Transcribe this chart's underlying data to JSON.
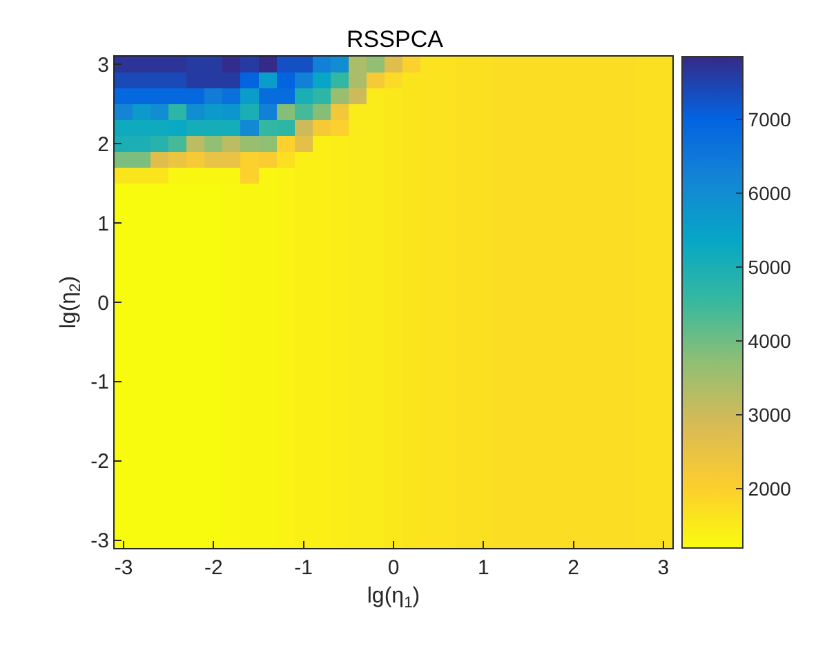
{
  "chart_data": {
    "type": "heatmap",
    "title": "RSSPCA",
    "xlabel": "lg(η$_{1}$)",
    "ylabel": "lg(η$_{2}$)",
    "x": [
      -3,
      -2.8,
      -2.6,
      -2.4,
      -2.2,
      -2,
      -1.8,
      -1.6,
      -1.4,
      -1.2,
      -1,
      -0.8,
      -0.6,
      -0.4,
      -0.2,
      0,
      0.2,
      0.4,
      0.6,
      0.8,
      1,
      1.2,
      1.4,
      1.6,
      1.8,
      2,
      2.2,
      2.4,
      2.6,
      2.8,
      3
    ],
    "y": [
      3,
      2.8,
      2.6,
      2.4,
      2.2,
      2,
      1.8,
      1.6,
      1.4,
      1.2,
      1,
      0.8,
      0.6,
      0.4,
      0.2,
      0,
      -0.2,
      -0.4,
      -0.6,
      -0.8,
      -1,
      -1.2,
      -1.4,
      -1.6,
      -1.8,
      -2,
      -2.2,
      -2.4,
      -2.6,
      -2.8,
      -3
    ],
    "xlim": [
      -3.1,
      3.1
    ],
    "ylim": [
      -3.1,
      3.1
    ],
    "xticks": [
      -3,
      -2,
      -1,
      0,
      1,
      2,
      3
    ],
    "yticks": [
      -3,
      -2,
      -1,
      0,
      1,
      2,
      3
    ],
    "clim": [
      1200,
      7850
    ],
    "cticks": [
      2000,
      3000,
      4000,
      5000,
      6000,
      7000
    ],
    "cells": [
      [
        7700,
        7700,
        7700,
        7700,
        7600,
        7600,
        7800,
        7600,
        7850,
        7300,
        7300,
        6300,
        6000,
        3400,
        3700,
        2700,
        2000,
        1650,
        1650,
        1700,
        1700,
        1750,
        1750,
        1750,
        1750,
        1750,
        1750,
        1750,
        1750,
        1700,
        1700
      ],
      [
        7400,
        7400,
        7400,
        7400,
        7600,
        7600,
        7600,
        7000,
        5600,
        7000,
        6300,
        5400,
        4600,
        3400,
        2200,
        1800,
        1600,
        1650,
        1650,
        1700,
        1700,
        1750,
        1750,
        1750,
        1750,
        1750,
        1750,
        1750,
        1750,
        1700,
        1700
      ],
      [
        6900,
        6900,
        6900,
        6900,
        6900,
        6400,
        6700,
        5600,
        6800,
        6800,
        5000,
        4700,
        3600,
        3000,
        1500,
        1550,
        1600,
        1650,
        1650,
        1700,
        1700,
        1750,
        1750,
        1750,
        1750,
        1750,
        1750,
        1750,
        1750,
        1700,
        1700
      ],
      [
        6200,
        5700,
        6000,
        4700,
        6000,
        5700,
        5800,
        5000,
        6300,
        3800,
        4400,
        3800,
        2300,
        1500,
        1500,
        1550,
        1600,
        1650,
        1650,
        1700,
        1700,
        1750,
        1750,
        1750,
        1750,
        1750,
        1750,
        1750,
        1750,
        1700,
        1700
      ],
      [
        5200,
        5200,
        5200,
        5300,
        5100,
        5100,
        5100,
        6100,
        4600,
        4700,
        3000,
        2200,
        2000,
        1500,
        1500,
        1550,
        1600,
        1650,
        1650,
        1700,
        1700,
        1750,
        1750,
        1750,
        1750,
        1750,
        1750,
        1750,
        1750,
        1700,
        1700
      ],
      [
        5000,
        5000,
        4800,
        4400,
        3200,
        3700,
        3200,
        3600,
        3700,
        2000,
        2600,
        1400,
        1450,
        1500,
        1500,
        1550,
        1600,
        1650,
        1650,
        1700,
        1700,
        1750,
        1750,
        1750,
        1750,
        1750,
        1750,
        1750,
        1750,
        1700,
        1700
      ],
      [
        3900,
        3900,
        2700,
        2400,
        2200,
        2500,
        2500,
        2000,
        2100,
        1700,
        1400,
        1400,
        1450,
        1500,
        1500,
        1550,
        1600,
        1650,
        1650,
        1700,
        1700,
        1750,
        1750,
        1750,
        1750,
        1750,
        1750,
        1750,
        1750,
        1700,
        1700
      ],
      [
        1600,
        1600,
        1600,
        1300,
        1300,
        1300,
        1300,
        2000,
        1300,
        1350,
        1400,
        1400,
        1450,
        1500,
        1500,
        1550,
        1600,
        1650,
        1650,
        1700,
        1700,
        1750,
        1750,
        1750,
        1750,
        1750,
        1750,
        1750,
        1750,
        1700,
        1700
      ],
      [
        1200,
        1200,
        1200,
        1200,
        1200,
        1200,
        1250,
        1300,
        1300,
        1350,
        1400,
        1400,
        1450,
        1500,
        1500,
        1550,
        1600,
        1650,
        1650,
        1700,
        1700,
        1750,
        1750,
        1750,
        1750,
        1750,
        1750,
        1750,
        1750,
        1700,
        1700
      ],
      [
        1200,
        1200,
        1200,
        1200,
        1200,
        1200,
        1250,
        1300,
        1300,
        1350,
        1400,
        1400,
        1450,
        1500,
        1500,
        1550,
        1600,
        1650,
        1650,
        1700,
        1700,
        1750,
        1750,
        1750,
        1750,
        1750,
        1750,
        1750,
        1750,
        1700,
        1700
      ],
      [
        1200,
        1200,
        1200,
        1200,
        1200,
        1200,
        1250,
        1300,
        1300,
        1350,
        1400,
        1400,
        1450,
        1500,
        1500,
        1550,
        1600,
        1650,
        1650,
        1700,
        1700,
        1750,
        1750,
        1750,
        1750,
        1750,
        1750,
        1750,
        1750,
        1700,
        1700
      ],
      [
        1200,
        1200,
        1200,
        1200,
        1200,
        1200,
        1250,
        1300,
        1300,
        1350,
        1400,
        1400,
        1450,
        1500,
        1500,
        1550,
        1600,
        1650,
        1650,
        1700,
        1700,
        1750,
        1750,
        1750,
        1750,
        1750,
        1750,
        1750,
        1750,
        1700,
        1700
      ],
      [
        1200,
        1200,
        1200,
        1200,
        1200,
        1200,
        1250,
        1300,
        1300,
        1350,
        1400,
        1400,
        1450,
        1500,
        1500,
        1550,
        1600,
        1650,
        1650,
        1700,
        1700,
        1750,
        1750,
        1750,
        1750,
        1750,
        1750,
        1750,
        1750,
        1700,
        1700
      ],
      [
        1200,
        1200,
        1200,
        1200,
        1200,
        1200,
        1250,
        1300,
        1300,
        1350,
        1400,
        1400,
        1450,
        1500,
        1500,
        1550,
        1600,
        1650,
        1650,
        1700,
        1700,
        1750,
        1750,
        1750,
        1750,
        1750,
        1750,
        1750,
        1750,
        1700,
        1700
      ],
      [
        1200,
        1200,
        1200,
        1200,
        1200,
        1200,
        1250,
        1300,
        1300,
        1350,
        1400,
        1400,
        1450,
        1500,
        1500,
        1550,
        1600,
        1650,
        1650,
        1700,
        1700,
        1750,
        1750,
        1750,
        1750,
        1750,
        1750,
        1750,
        1750,
        1700,
        1700
      ],
      [
        1200,
        1200,
        1200,
        1200,
        1200,
        1200,
        1250,
        1300,
        1300,
        1350,
        1400,
        1400,
        1450,
        1500,
        1500,
        1550,
        1600,
        1650,
        1650,
        1700,
        1700,
        1750,
        1750,
        1750,
        1750,
        1750,
        1750,
        1750,
        1750,
        1700,
        1700
      ],
      [
        1200,
        1200,
        1200,
        1200,
        1200,
        1200,
        1250,
        1300,
        1300,
        1350,
        1400,
        1400,
        1450,
        1500,
        1500,
        1550,
        1600,
        1650,
        1650,
        1700,
        1700,
        1750,
        1750,
        1750,
        1750,
        1750,
        1750,
        1750,
        1750,
        1700,
        1700
      ],
      [
        1200,
        1200,
        1200,
        1200,
        1200,
        1200,
        1250,
        1300,
        1300,
        1350,
        1400,
        1400,
        1450,
        1500,
        1500,
        1550,
        1600,
        1650,
        1650,
        1700,
        1700,
        1750,
        1750,
        1750,
        1750,
        1750,
        1750,
        1750,
        1750,
        1700,
        1700
      ],
      [
        1200,
        1200,
        1200,
        1200,
        1200,
        1200,
        1250,
        1300,
        1300,
        1350,
        1400,
        1400,
        1450,
        1500,
        1500,
        1550,
        1600,
        1650,
        1650,
        1700,
        1700,
        1750,
        1750,
        1750,
        1750,
        1750,
        1750,
        1750,
        1750,
        1700,
        1700
      ],
      [
        1200,
        1200,
        1200,
        1200,
        1200,
        1200,
        1250,
        1300,
        1300,
        1350,
        1400,
        1400,
        1450,
        1500,
        1500,
        1550,
        1600,
        1650,
        1650,
        1700,
        1700,
        1750,
        1750,
        1750,
        1750,
        1750,
        1750,
        1750,
        1750,
        1700,
        1700
      ],
      [
        1200,
        1200,
        1200,
        1200,
        1200,
        1200,
        1250,
        1300,
        1300,
        1350,
        1400,
        1400,
        1450,
        1500,
        1500,
        1550,
        1600,
        1650,
        1650,
        1700,
        1700,
        1750,
        1750,
        1750,
        1750,
        1750,
        1750,
        1750,
        1750,
        1700,
        1700
      ],
      [
        1200,
        1200,
        1200,
        1200,
        1200,
        1200,
        1250,
        1300,
        1300,
        1350,
        1400,
        1400,
        1450,
        1500,
        1500,
        1550,
        1600,
        1650,
        1650,
        1700,
        1700,
        1750,
        1750,
        1750,
        1750,
        1750,
        1750,
        1750,
        1750,
        1700,
        1700
      ],
      [
        1200,
        1200,
        1200,
        1200,
        1200,
        1200,
        1250,
        1300,
        1300,
        1350,
        1400,
        1400,
        1450,
        1500,
        1500,
        1550,
        1600,
        1650,
        1650,
        1700,
        1700,
        1750,
        1750,
        1750,
        1750,
        1750,
        1750,
        1750,
        1750,
        1700,
        1700
      ],
      [
        1200,
        1200,
        1200,
        1200,
        1200,
        1200,
        1250,
        1300,
        1300,
        1350,
        1400,
        1400,
        1450,
        1500,
        1500,
        1550,
        1600,
        1650,
        1650,
        1700,
        1700,
        1750,
        1750,
        1750,
        1750,
        1750,
        1750,
        1750,
        1750,
        1700,
        1700
      ],
      [
        1200,
        1200,
        1200,
        1200,
        1200,
        1200,
        1250,
        1300,
        1300,
        1350,
        1400,
        1400,
        1450,
        1500,
        1500,
        1550,
        1600,
        1650,
        1650,
        1700,
        1700,
        1750,
        1750,
        1750,
        1750,
        1750,
        1750,
        1750,
        1750,
        1700,
        1700
      ],
      [
        1200,
        1200,
        1200,
        1200,
        1200,
        1200,
        1250,
        1300,
        1300,
        1350,
        1400,
        1400,
        1450,
        1500,
        1500,
        1550,
        1600,
        1650,
        1650,
        1700,
        1700,
        1750,
        1750,
        1750,
        1750,
        1750,
        1750,
        1750,
        1750,
        1700,
        1700
      ],
      [
        1200,
        1200,
        1200,
        1200,
        1200,
        1200,
        1250,
        1300,
        1300,
        1350,
        1400,
        1400,
        1450,
        1500,
        1500,
        1550,
        1600,
        1650,
        1650,
        1700,
        1700,
        1750,
        1750,
        1750,
        1750,
        1750,
        1750,
        1750,
        1750,
        1700,
        1700
      ],
      [
        1200,
        1200,
        1200,
        1200,
        1200,
        1200,
        1250,
        1300,
        1300,
        1350,
        1400,
        1400,
        1450,
        1500,
        1500,
        1550,
        1600,
        1650,
        1650,
        1700,
        1700,
        1750,
        1750,
        1750,
        1750,
        1750,
        1750,
        1750,
        1750,
        1700,
        1700
      ],
      [
        1200,
        1200,
        1200,
        1200,
        1200,
        1200,
        1250,
        1300,
        1300,
        1350,
        1400,
        1400,
        1450,
        1500,
        1500,
        1550,
        1600,
        1650,
        1650,
        1700,
        1700,
        1750,
        1750,
        1750,
        1750,
        1750,
        1750,
        1750,
        1750,
        1700,
        1700
      ],
      [
        1200,
        1200,
        1200,
        1200,
        1200,
        1200,
        1250,
        1300,
        1300,
        1350,
        1400,
        1400,
        1450,
        1500,
        1500,
        1550,
        1600,
        1650,
        1650,
        1700,
        1700,
        1750,
        1750,
        1750,
        1750,
        1750,
        1750,
        1750,
        1750,
        1700,
        1700
      ],
      [
        1200,
        1200,
        1200,
        1200,
        1200,
        1200,
        1250,
        1300,
        1300,
        1350,
        1400,
        1400,
        1450,
        1500,
        1500,
        1550,
        1600,
        1650,
        1650,
        1700,
        1700,
        1750,
        1750,
        1750,
        1750,
        1750,
        1750,
        1750,
        1750,
        1700,
        1700
      ]
    ]
  }
}
